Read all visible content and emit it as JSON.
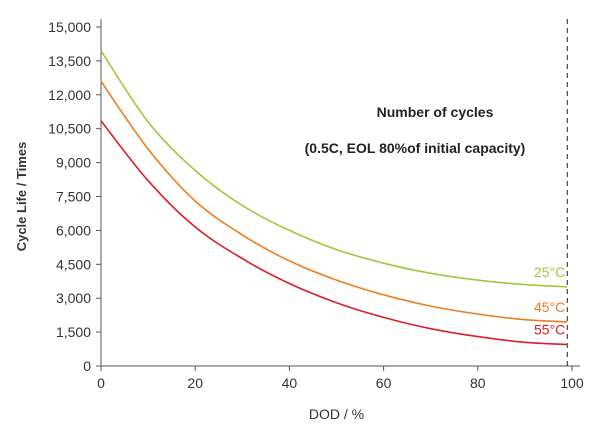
{
  "chart_data": {
    "type": "line",
    "title": "",
    "xlabel": "DOD / %",
    "ylabel": "Cycle Life / Times",
    "xlim": [
      0,
      100
    ],
    "ylim": [
      0,
      15000
    ],
    "x_ticks": [
      0,
      20,
      40,
      60,
      80,
      100
    ],
    "x_tick_labels": [
      "0",
      "20",
      "40",
      "60",
      "80",
      "100"
    ],
    "y_ticks": [
      0,
      1500,
      3000,
      4500,
      6000,
      7500,
      9000,
      10500,
      12000,
      13500,
      15000
    ],
    "y_tick_labels": [
      "0",
      "1,500",
      "3,000",
      "4,500",
      "6,000",
      "7,500",
      "9,000",
      "10,500",
      "12,000",
      "13,500",
      "15,000"
    ],
    "grid": false,
    "annotations": [
      "Number of cycles",
      "(0.5C, EOL 80%of initial capacity)"
    ],
    "reference_line": {
      "x": 99,
      "style": "dashed"
    },
    "x": [
      0,
      10,
      20,
      30,
      40,
      50,
      60,
      70,
      80,
      90,
      99
    ],
    "series": [
      {
        "name": "25°C",
        "color": "#9dc83b",
        "values": [
          13950,
          10800,
          8650,
          7100,
          6000,
          5150,
          4550,
          4100,
          3800,
          3600,
          3500
        ]
      },
      {
        "name": "45°C",
        "color": "#f07d1e",
        "values": [
          12600,
          9600,
          7300,
          5800,
          4650,
          3800,
          3150,
          2650,
          2300,
          2050,
          1950
        ]
      },
      {
        "name": "55°C",
        "color": "#d7202b",
        "values": [
          10850,
          8200,
          6150,
          4750,
          3650,
          2800,
          2150,
          1650,
          1300,
          1050,
          950
        ]
      }
    ]
  }
}
